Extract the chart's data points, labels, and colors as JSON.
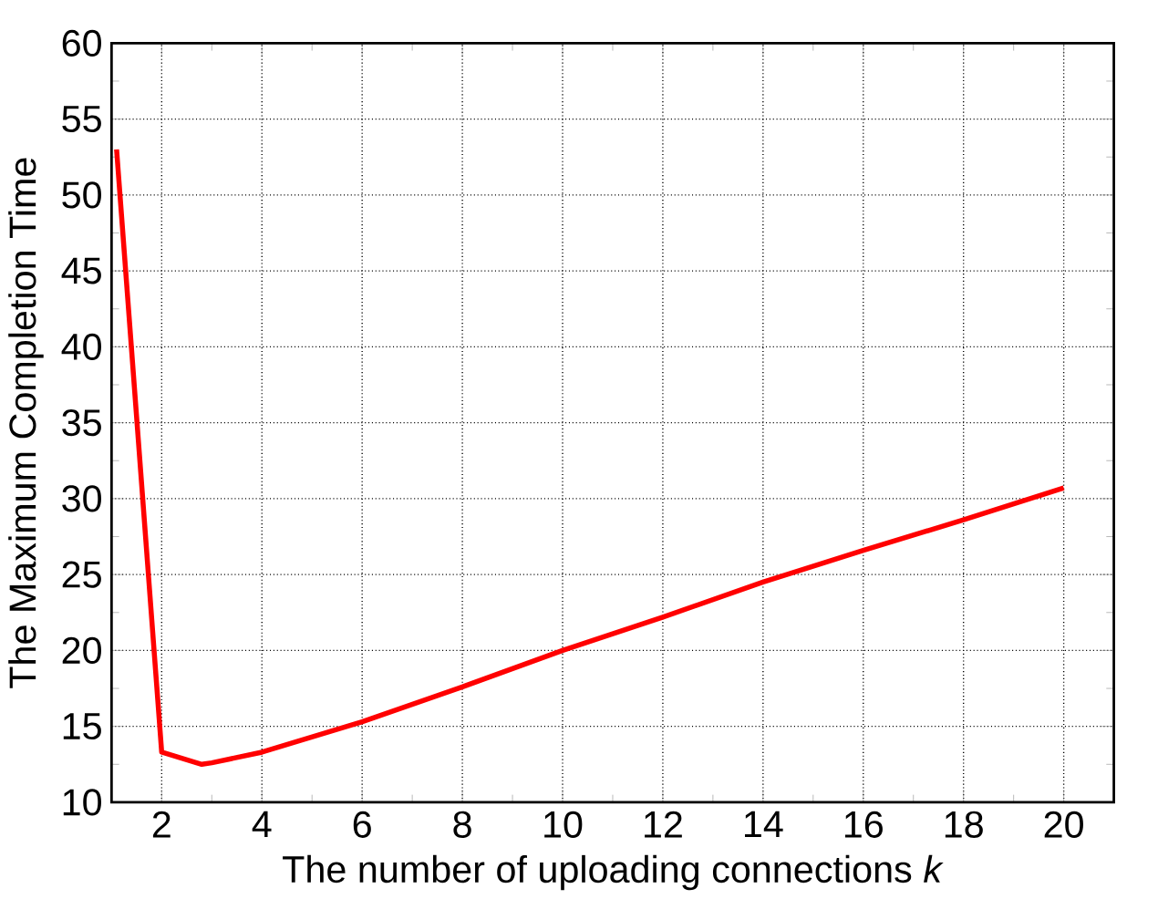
{
  "chart_data": {
    "type": "line",
    "xlabel": "The number of uploading connections *k*",
    "ylabel": "The Maximum Completion Time",
    "x": [
      1.1,
      2,
      2.8,
      3,
      4,
      5,
      6,
      8,
      10,
      12,
      14,
      16,
      18,
      20
    ],
    "values": [
      53,
      13.3,
      12.5,
      12.6,
      13.3,
      14.3,
      15.3,
      17.6,
      20,
      22.2,
      24.5,
      26.6,
      28.6,
      30.7
    ],
    "color": "#ff0000",
    "xlim": [
      1,
      21
    ],
    "ylim": [
      10,
      60
    ],
    "xticks": [
      2,
      4,
      6,
      8,
      10,
      12,
      14,
      16,
      18,
      20
    ],
    "yticks": [
      10,
      15,
      20,
      25,
      30,
      35,
      40,
      45,
      50,
      55,
      60
    ],
    "grid": true,
    "marker": "none",
    "line_style": "solid"
  }
}
